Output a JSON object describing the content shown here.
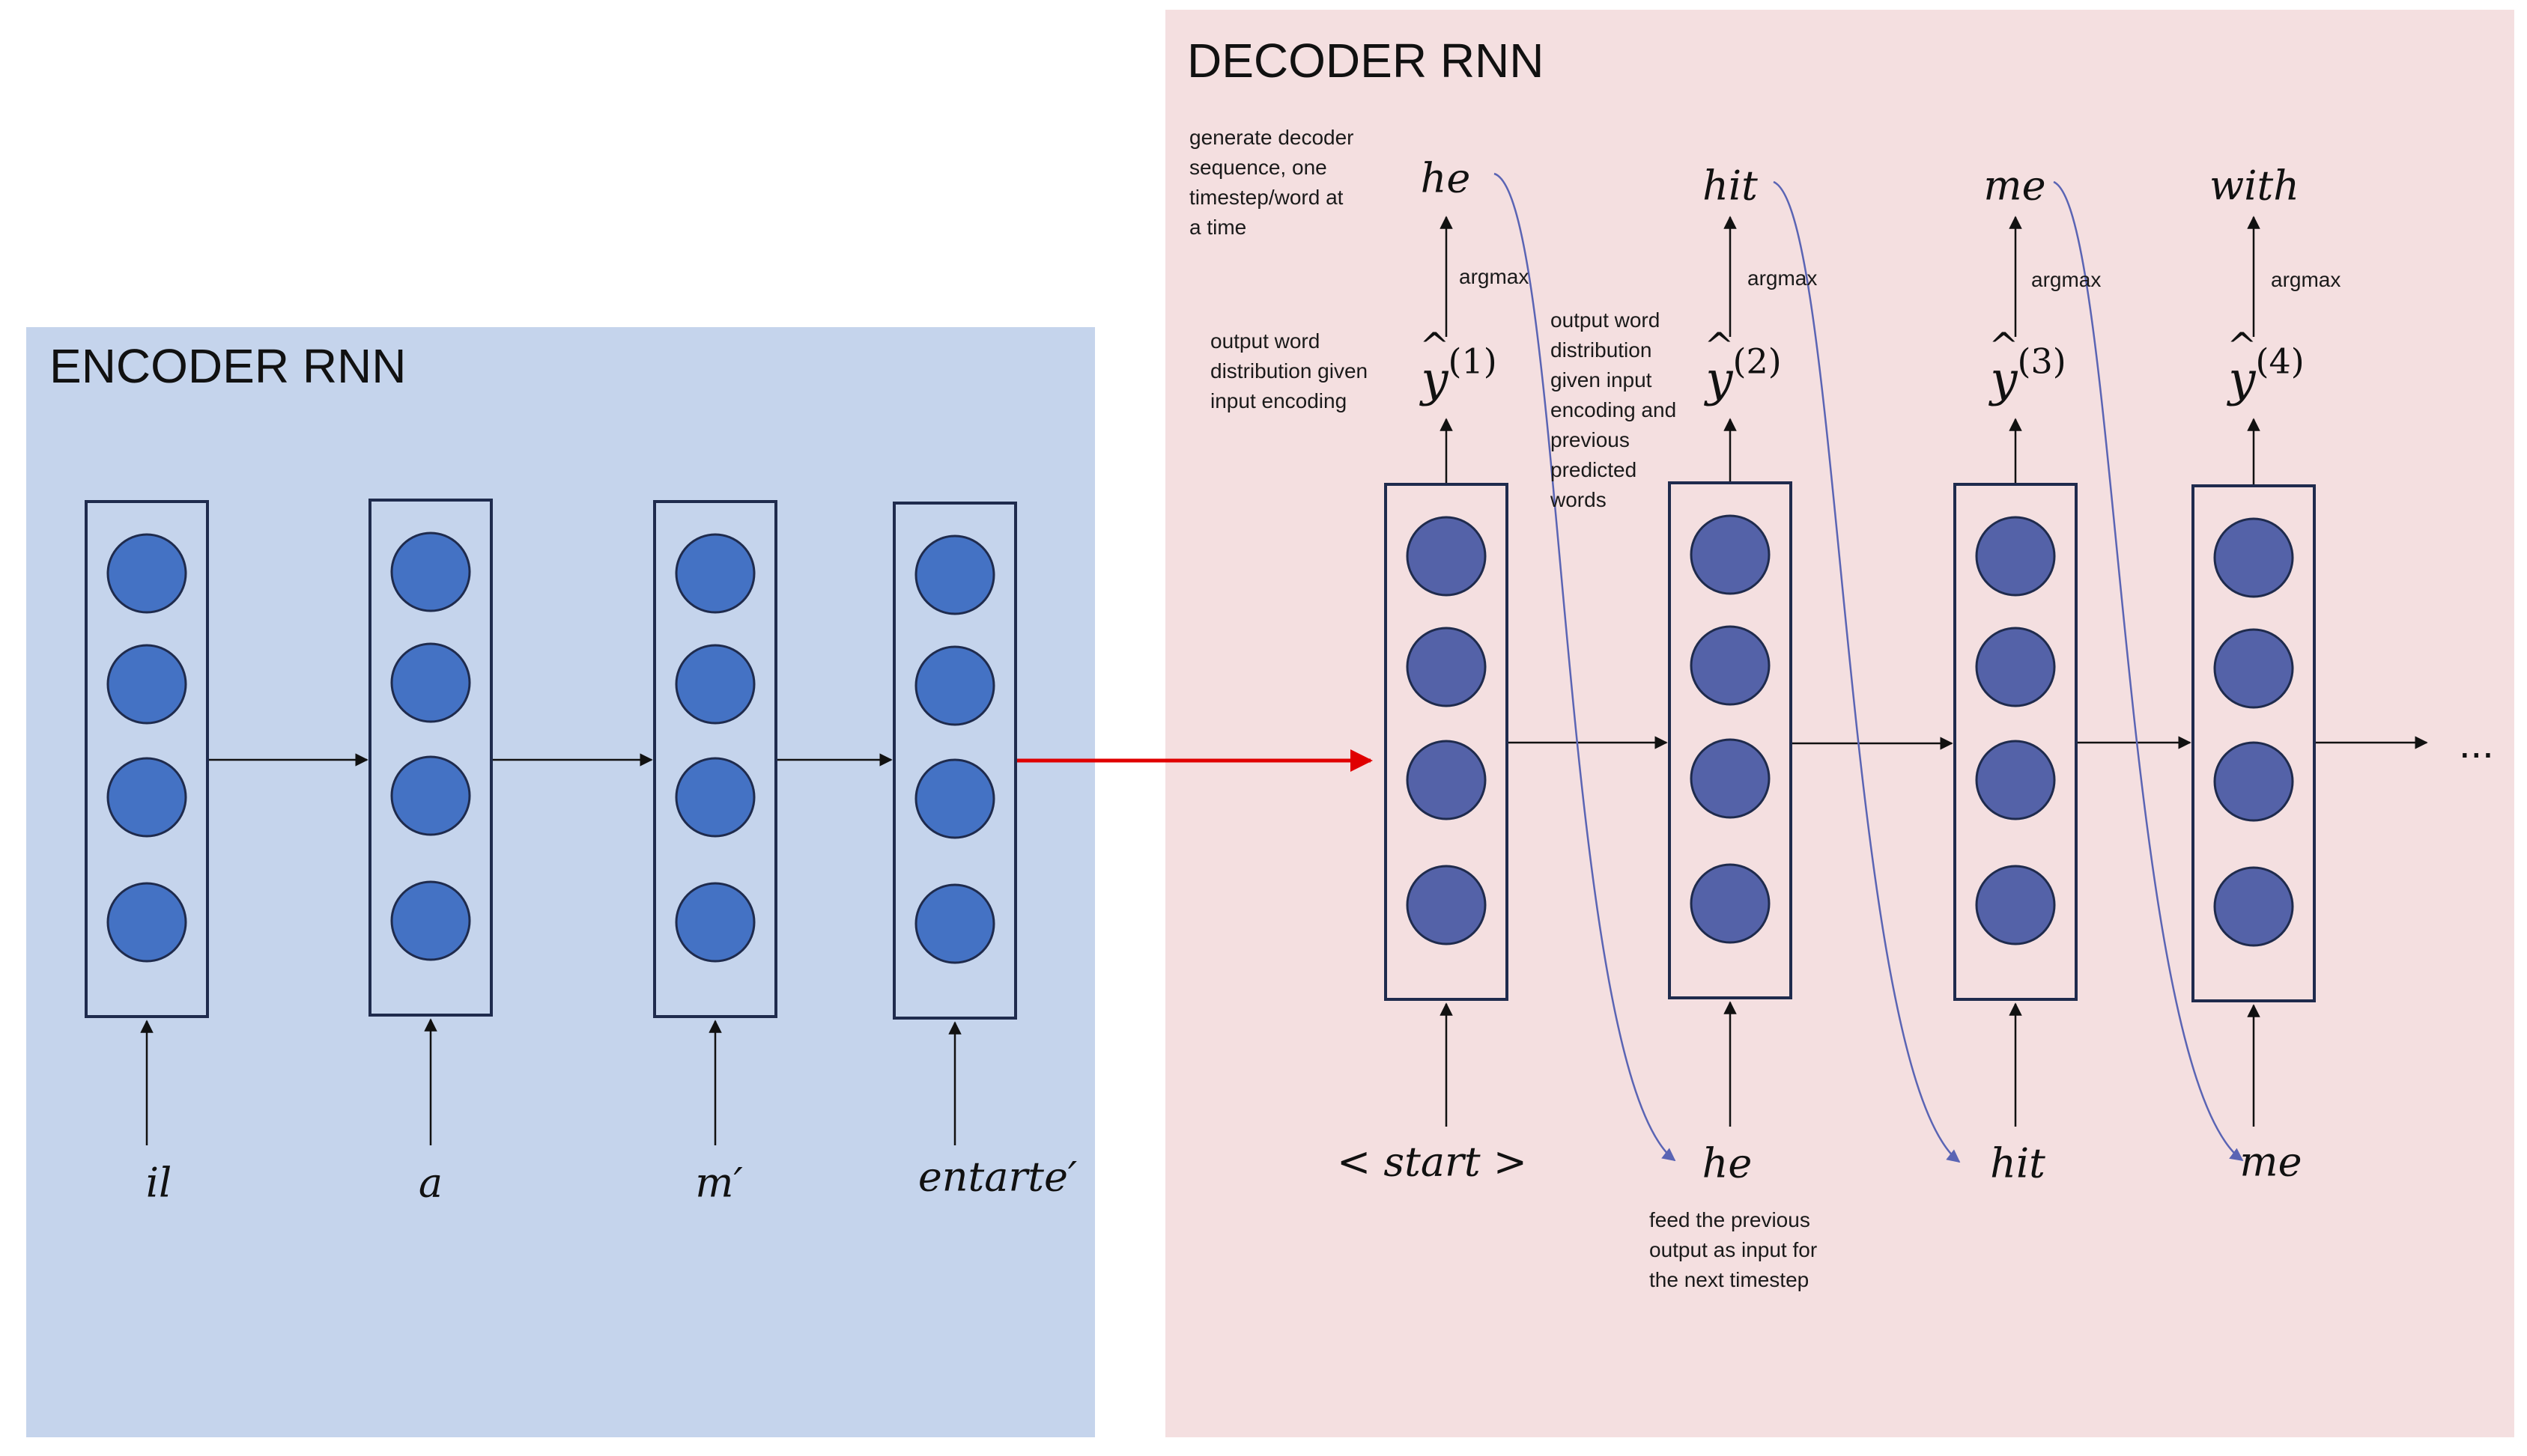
{
  "encoder": {
    "title": "ENCODER RNN",
    "inputs": [
      "il",
      "a",
      "m′",
      "entarte′"
    ]
  },
  "decoder": {
    "title": "DECODER RNN",
    "inputs": [
      "< start >",
      "he",
      "hit",
      "me"
    ],
    "outputs": [
      "he",
      "hit",
      "me",
      "with"
    ],
    "distributions": [
      {
        "base": "y",
        "sup": "(1)"
      },
      {
        "base": "y",
        "sup": "(2)"
      },
      {
        "base": "y",
        "sup": "(3)"
      },
      {
        "base": "y",
        "sup": "(4)"
      }
    ],
    "argmax_label": "argmax",
    "continuation": "...",
    "notes": {
      "generate": [
        "generate decoder",
        "sequence, one",
        "timestep/word at",
        "a time"
      ],
      "first_output": [
        "output word",
        "distribution given",
        "input encoding"
      ],
      "later_output": [
        "output word",
        "distribution",
        "given input",
        "encoding and",
        "previous",
        "predicted",
        "words"
      ],
      "feed": [
        "feed the previous",
        "output as input for",
        "the next timestep"
      ]
    }
  },
  "colors": {
    "encoder_bg": "#c5d4ec",
    "decoder_bg": "#f4dfe0",
    "encoder_node": "#4472c4",
    "decoder_node": "#5462a8",
    "node_stroke": "#1f2b4d",
    "arrow": "#111111",
    "context_arrow": "#e00000",
    "feedback_arrow": "#5a64b4"
  }
}
